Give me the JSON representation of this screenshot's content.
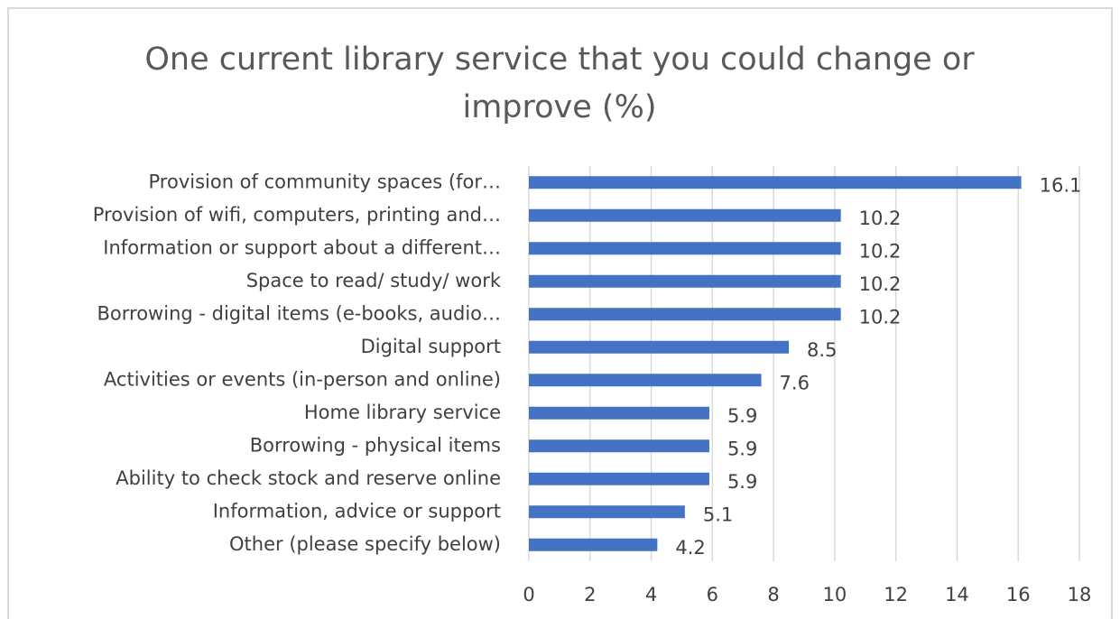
{
  "chart_data": {
    "type": "barh",
    "title": "One current library service that you could change or improve (%)",
    "categories": [
      "Provision of community spaces (for…",
      "Provision of wifi, computers, printing and…",
      "Information or support about a different…",
      "Space to read/ study/ work",
      "Borrowing - digital items (e-books, audio…",
      "Digital support",
      "Activities or events (in-person and online)",
      "Home library service",
      "Borrowing - physical items",
      "Ability to check stock and reserve online",
      "Information, advice or support",
      "Other (please specify below)"
    ],
    "values": [
      16.1,
      10.2,
      10.2,
      10.2,
      10.2,
      8.5,
      7.6,
      5.9,
      5.9,
      5.9,
      5.1,
      4.2
    ],
    "color": "#4472c4",
    "xlim": [
      0,
      18
    ],
    "xticks": [
      0,
      2,
      4,
      6,
      8,
      10,
      12,
      14,
      16,
      18
    ],
    "grid": true
  }
}
